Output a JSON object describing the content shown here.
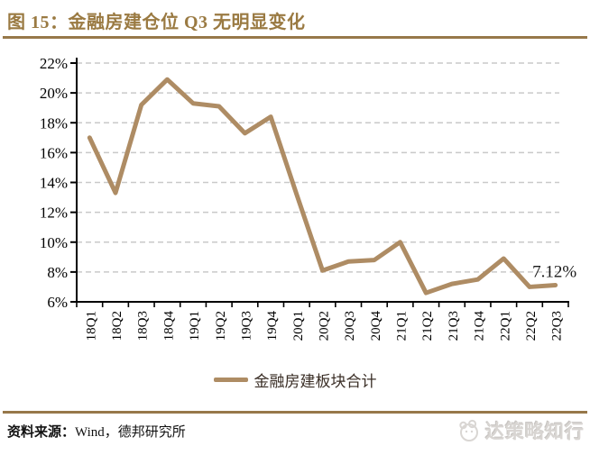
{
  "figure": {
    "title": "图 15：金融房建仓位 Q3 无明显变化",
    "source_prefix": "资料来源：",
    "source_text": "Wind，德邦研究所",
    "watermark": "达策略知行"
  },
  "colors": {
    "accent_gold": "#97784A",
    "title_gold": "#9A7A42",
    "line": "#AE8C64",
    "gridline": "#C9C9C9",
    "axis": "#000000",
    "legend_text": "#3A2E26",
    "annotation": "#1A1A1A",
    "watermark_gray": "#D8D5D2"
  },
  "chart_data": {
    "type": "line",
    "title": "金融房建仓位 Q3 无明显变化",
    "categories": [
      "18Q1",
      "18Q2",
      "18Q3",
      "18Q4",
      "19Q1",
      "19Q2",
      "19Q3",
      "19Q4",
      "20Q1",
      "20Q2",
      "20Q3",
      "20Q4",
      "21Q1",
      "21Q2",
      "21Q3",
      "21Q4",
      "22Q1",
      "22Q2",
      "22Q3"
    ],
    "series": [
      {
        "name": "金融房建板块合计",
        "values": [
          17.0,
          13.3,
          19.2,
          20.9,
          19.3,
          19.1,
          17.3,
          18.4,
          13.2,
          8.1,
          8.7,
          8.8,
          10.0,
          6.6,
          7.2,
          7.5,
          8.9,
          7.0,
          7.12
        ]
      }
    ],
    "xlabel": "",
    "ylabel": "",
    "ylim": [
      6,
      22
    ],
    "ytick_step": 2,
    "ytick_labels": [
      "22%",
      "20%",
      "18%",
      "16%",
      "14%",
      "12%",
      "10%",
      "8%",
      "6%"
    ],
    "grid": "horizontal-dashed",
    "legend_position": "bottom",
    "annotation": {
      "text": "7.12%",
      "category": "22Q3",
      "value": 7.12
    }
  }
}
